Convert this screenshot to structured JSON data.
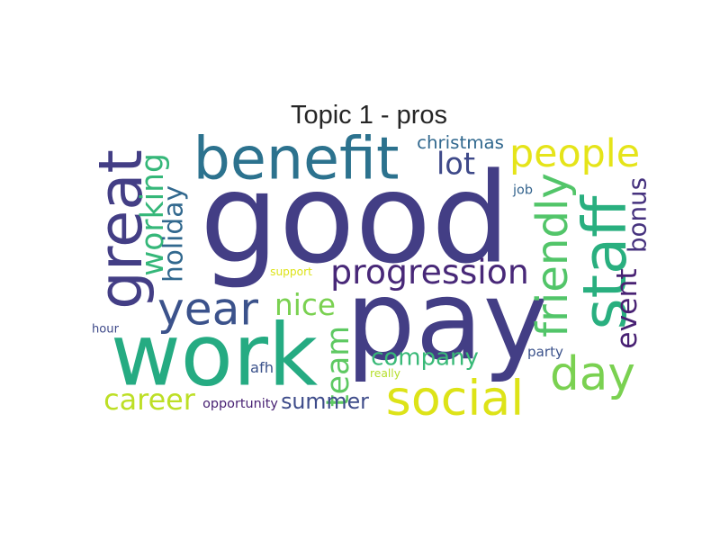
{
  "chart_data": {
    "type": "wordcloud",
    "title": "Topic 1 - pros",
    "words": [
      {
        "text": "good",
        "color": "#433e85"
      },
      {
        "text": "pay",
        "color": "#433e85"
      },
      {
        "text": "work",
        "color": "#25ab82"
      },
      {
        "text": "benefit",
        "color": "#2c728e"
      },
      {
        "text": "social",
        "color": "#dde318"
      },
      {
        "text": "staff",
        "color": "#29af7f"
      },
      {
        "text": "great",
        "color": "#433e85"
      },
      {
        "text": "year",
        "color": "#3b528b"
      },
      {
        "text": "day",
        "color": "#7ad151"
      },
      {
        "text": "people",
        "color": "#e5e419"
      },
      {
        "text": "progression",
        "color": "#482878"
      },
      {
        "text": "friendly",
        "color": "#52c569"
      },
      {
        "text": "working",
        "color": "#35b779"
      },
      {
        "text": "nice",
        "color": "#7ad151"
      },
      {
        "text": "career",
        "color": "#bddf26"
      },
      {
        "text": "event",
        "color": "#482173"
      },
      {
        "text": "company",
        "color": "#38b977"
      },
      {
        "text": "team",
        "color": "#5ec962"
      },
      {
        "text": "lot",
        "color": "#3e4989"
      },
      {
        "text": "holiday",
        "color": "#31688e"
      },
      {
        "text": "summer",
        "color": "#3e4c8a"
      },
      {
        "text": "bonus",
        "color": "#46327e"
      },
      {
        "text": "christmas",
        "color": "#31688e"
      },
      {
        "text": "opportunity",
        "color": "#482173"
      },
      {
        "text": "support",
        "color": "#dde318"
      },
      {
        "text": "party",
        "color": "#3b528b"
      },
      {
        "text": "hour",
        "color": "#3e4989"
      },
      {
        "text": "afh",
        "color": "#3b528b"
      },
      {
        "text": "really",
        "color": "#b5de2b"
      },
      {
        "text": "job",
        "color": "#33638d"
      }
    ]
  }
}
